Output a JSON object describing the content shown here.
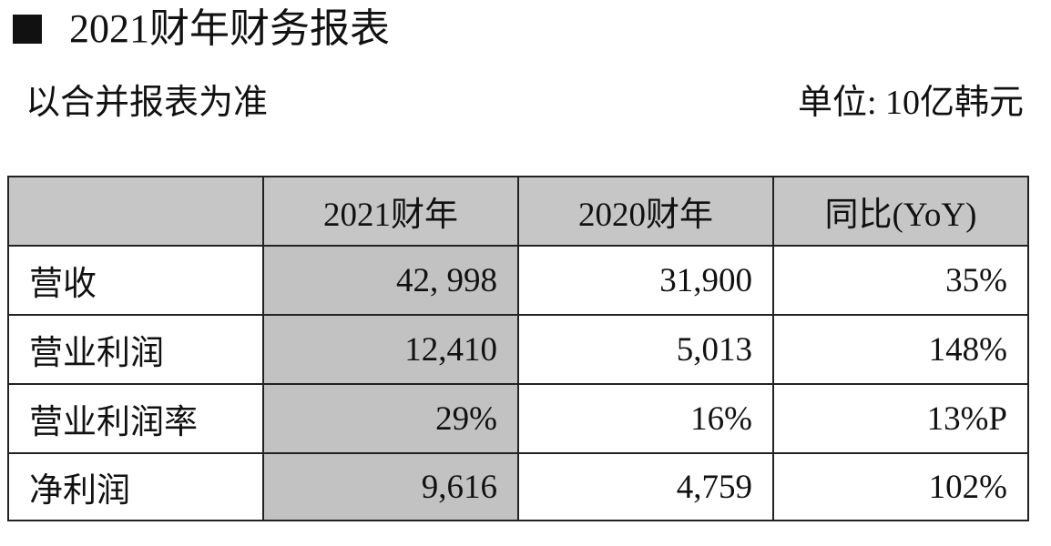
{
  "header": {
    "title": "2021财年财务报表",
    "note_left": "以合并报表为准",
    "note_right": "单位: 10亿韩元"
  },
  "table": {
    "columns": [
      "2021财年",
      "2020财年",
      "同比(YoY)"
    ],
    "rows": [
      {
        "label": "营收",
        "cells": [
          "42, 998",
          "31,900",
          "35%"
        ]
      },
      {
        "label": "营业利润",
        "cells": [
          "12,410",
          "5,013",
          "148%"
        ]
      },
      {
        "label": "营业利润率",
        "cells": [
          "29%",
          "16%",
          "13%P"
        ]
      },
      {
        "label": "净利润",
        "cells": [
          "9,616",
          "4,759",
          "102%"
        ]
      }
    ]
  }
}
